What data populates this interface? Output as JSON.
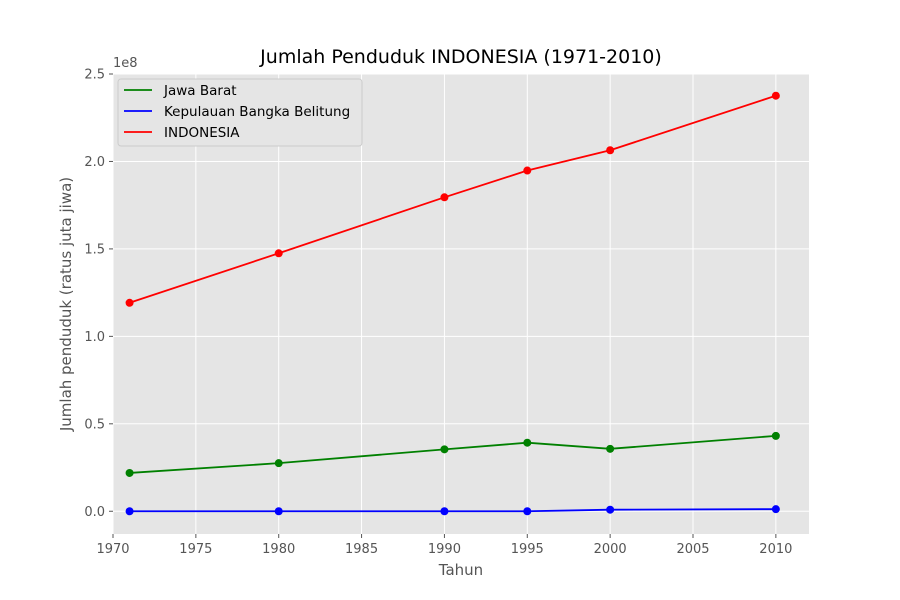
{
  "chart_data": {
    "type": "line",
    "title": "Jumlah Penduduk INDONESIA (1971-2010)",
    "xlabel": "Tahun",
    "ylabel": "Jumlah penduduk (ratus juta jiwa)",
    "y_offset_label": "1e8",
    "x": [
      1971,
      1980,
      1990,
      1995,
      2000,
      2010
    ],
    "xlim": [
      1970,
      2012
    ],
    "ylim": [
      -0.13,
      2.5
    ],
    "x_ticks": [
      1970,
      1975,
      1980,
      1985,
      1990,
      1995,
      2000,
      2005,
      2010
    ],
    "y_ticks": [
      0.0,
      0.5,
      1.0,
      1.5,
      2.0,
      2.5
    ],
    "y_tick_labels": [
      "0.0",
      "0.5",
      "1.0",
      "1.5",
      "2.0",
      "2.5"
    ],
    "grid": true,
    "legend_position": "top-left",
    "series": [
      {
        "name": "Jawa Barat",
        "color": "#008000",
        "values": [
          0.219,
          0.275,
          0.354,
          0.392,
          0.357,
          0.431
        ]
      },
      {
        "name": "Kepulauan Bangka Belitung",
        "color": "#0000ff",
        "values": [
          0.0,
          0.0,
          0.0,
          0.0,
          0.009,
          0.012
        ]
      },
      {
        "name": "INDONESIA",
        "color": "#ff0000",
        "values": [
          1.192,
          1.475,
          1.795,
          1.948,
          2.064,
          2.376
        ]
      }
    ]
  }
}
